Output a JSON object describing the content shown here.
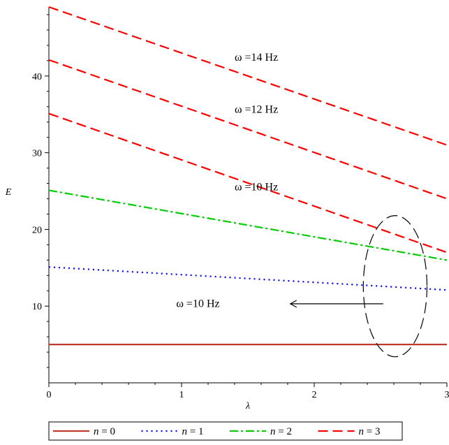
{
  "chart_data": {
    "type": "line",
    "xlabel": "λ",
    "ylabel": "E",
    "xlim": [
      0,
      3
    ],
    "ylim": [
      0,
      49
    ],
    "x_ticks": [
      0,
      1,
      2,
      3
    ],
    "y_ticks": [
      10,
      20,
      30,
      40
    ],
    "grid": false,
    "legend_position": "bottom",
    "series": [
      {
        "name": "n = 0",
        "legend_var": "n",
        "legend_val": "= 0",
        "color": "#c0392b",
        "dash": "solid",
        "x": [
          0,
          3
        ],
        "y": [
          5,
          5
        ]
      },
      {
        "name": "n = 1",
        "legend_var": "n",
        "legend_val": "= 1",
        "color": "#0000ff",
        "dash": "dot",
        "x": [
          0,
          3
        ],
        "y": [
          15.1,
          12.1
        ]
      },
      {
        "name": "n = 2",
        "legend_var": "n",
        "legend_val": "= 2",
        "color": "#00cc00",
        "dash": "dashdot",
        "x": [
          0,
          3
        ],
        "y": [
          25.1,
          16.0
        ]
      },
      {
        "name": "n = 3",
        "legend_var": "n",
        "legend_val": "= 3",
        "color": "#ff0000",
        "dash": "dash",
        "x": [
          0,
          3
        ],
        "y": [
          35.1,
          17.0
        ]
      },
      {
        "name": "n = 3",
        "legend_var": "n",
        "legend_val": "= 3",
        "color": "#ff0000",
        "dash": "dash",
        "x": [
          0,
          3
        ],
        "y": [
          42.1,
          24.0
        ]
      },
      {
        "name": "n = 3",
        "legend_var": "n",
        "legend_val": "= 3",
        "color": "#ff0000",
        "dash": "dash",
        "x": [
          0,
          3
        ],
        "y": [
          49.0,
          31.0
        ]
      }
    ],
    "legend_series": [
      0,
      1,
      2,
      3
    ],
    "annotations": [
      {
        "text": "ω =14 Hz",
        "x": 1.4,
        "y": 42.0
      },
      {
        "text": "ω =12 Hz",
        "x": 1.4,
        "y": 35.2
      },
      {
        "text": "ω =10 Hz",
        "x": 1.4,
        "y": 25.1
      },
      {
        "text": "ω =10 Hz",
        "x": 0.96,
        "y": 9.9
      }
    ],
    "ellipse": {
      "cx": 2.61,
      "cy": 12.6,
      "rx": 0.24,
      "ry": 9.2
    },
    "arrow": {
      "from": [
        2.52,
        10.3
      ],
      "to": [
        1.82,
        10.3
      ]
    }
  }
}
